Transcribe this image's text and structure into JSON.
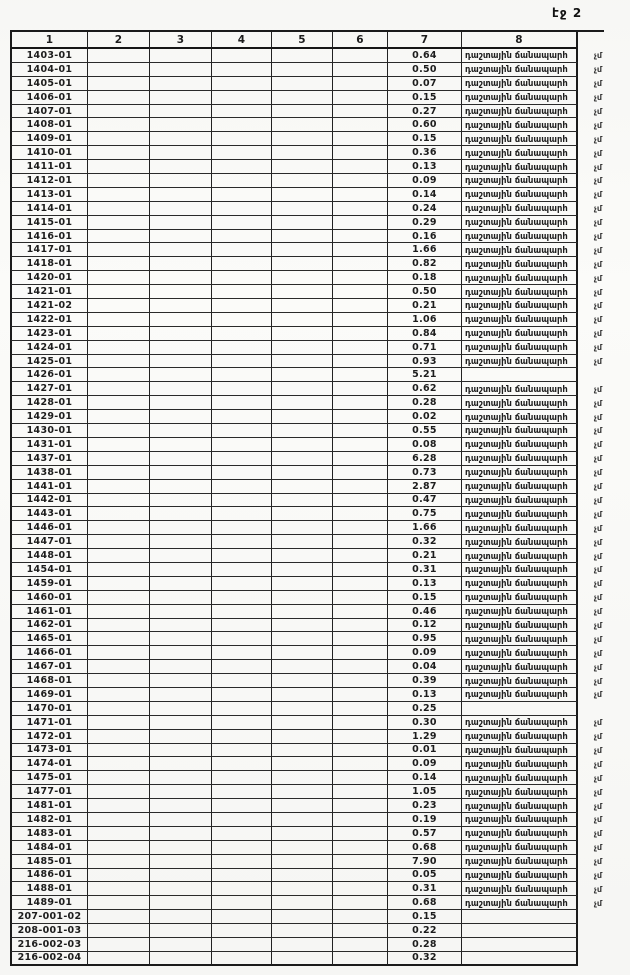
{
  "page": {
    "label": "էջ 2"
  },
  "table": {
    "headers": [
      "1",
      "2",
      "3",
      "4",
      "5",
      "6",
      "7",
      "8"
    ],
    "road_text": "դաշտային ճանապարհ",
    "margin_note": "չմ",
    "rows": [
      {
        "id": "1403-01",
        "value": "0.64",
        "road": true
      },
      {
        "id": "1404-01",
        "value": "0.50",
        "road": true
      },
      {
        "id": "1405-01",
        "value": "0.07",
        "road": true
      },
      {
        "id": "1406-01",
        "value": "0.15",
        "road": true
      },
      {
        "id": "1407-01",
        "value": "0.27",
        "road": true
      },
      {
        "id": "1408-01",
        "value": "0.60",
        "road": true
      },
      {
        "id": "1409-01",
        "value": "0.15",
        "road": true
      },
      {
        "id": "1410-01",
        "value": "0.36",
        "road": true
      },
      {
        "id": "1411-01",
        "value": "0.13",
        "road": true
      },
      {
        "id": "1412-01",
        "value": "0.09",
        "road": true
      },
      {
        "id": "1413-01",
        "value": "0.14",
        "road": true
      },
      {
        "id": "1414-01",
        "value": "0.24",
        "road": true
      },
      {
        "id": "1415-01",
        "value": "0.29",
        "road": true
      },
      {
        "id": "1416-01",
        "value": "0.16",
        "road": true
      },
      {
        "id": "1417-01",
        "value": "1.66",
        "road": true
      },
      {
        "id": "1418-01",
        "value": "0.82",
        "road": true
      },
      {
        "id": "1420-01",
        "value": "0.18",
        "road": true
      },
      {
        "id": "1421-01",
        "value": "0.50",
        "road": true
      },
      {
        "id": "1421-02",
        "value": "0.21",
        "road": true
      },
      {
        "id": "1422-01",
        "value": "1.06",
        "road": true
      },
      {
        "id": "1423-01",
        "value": "0.84",
        "road": true
      },
      {
        "id": "1424-01",
        "value": "0.71",
        "road": true
      },
      {
        "id": "1425-01",
        "value": "0.93",
        "road": true
      },
      {
        "id": "1426-01",
        "value": "5.21",
        "road": false
      },
      {
        "id": "1427-01",
        "value": "0.62",
        "road": true
      },
      {
        "id": "1428-01",
        "value": "0.28",
        "road": true
      },
      {
        "id": "1429-01",
        "value": "0.02",
        "road": true
      },
      {
        "id": "1430-01",
        "value": "0.55",
        "road": true
      },
      {
        "id": "1431-01",
        "value": "0.08",
        "road": true
      },
      {
        "id": "1437-01",
        "value": "6.28",
        "road": true
      },
      {
        "id": "1438-01",
        "value": "0.73",
        "road": true
      },
      {
        "id": "1441-01",
        "value": "2.87",
        "road": true
      },
      {
        "id": "1442-01",
        "value": "0.47",
        "road": true
      },
      {
        "id": "1443-01",
        "value": "0.75",
        "road": true
      },
      {
        "id": "1446-01",
        "value": "1.66",
        "road": true
      },
      {
        "id": "1447-01",
        "value": "0.32",
        "road": true
      },
      {
        "id": "1448-01",
        "value": "0.21",
        "road": true
      },
      {
        "id": "1454-01",
        "value": "0.31",
        "road": true
      },
      {
        "id": "1459-01",
        "value": "0.13",
        "road": true
      },
      {
        "id": "1460-01",
        "value": "0.15",
        "road": true
      },
      {
        "id": "1461-01",
        "value": "0.46",
        "road": true
      },
      {
        "id": "1462-01",
        "value": "0.12",
        "road": true
      },
      {
        "id": "1465-01",
        "value": "0.95",
        "road": true
      },
      {
        "id": "1466-01",
        "value": "0.09",
        "road": true
      },
      {
        "id": "1467-01",
        "value": "0.04",
        "road": true
      },
      {
        "id": "1468-01",
        "value": "0.39",
        "road": true
      },
      {
        "id": "1469-01",
        "value": "0.13",
        "road": true
      },
      {
        "id": "1470-01",
        "value": "0.25",
        "road": false
      },
      {
        "id": "1471-01",
        "value": "0.30",
        "road": true
      },
      {
        "id": "1472-01",
        "value": "1.29",
        "road": true
      },
      {
        "id": "1473-01",
        "value": "0.01",
        "road": true
      },
      {
        "id": "1474-01",
        "value": "0.09",
        "road": true
      },
      {
        "id": "1475-01",
        "value": "0.14",
        "road": true
      },
      {
        "id": "1477-01",
        "value": "1.05",
        "road": true
      },
      {
        "id": "1481-01",
        "value": "0.23",
        "road": true
      },
      {
        "id": "1482-01",
        "value": "0.19",
        "road": true
      },
      {
        "id": "1483-01",
        "value": "0.57",
        "road": true
      },
      {
        "id": "1484-01",
        "value": "0.68",
        "road": true
      },
      {
        "id": "1485-01",
        "value": "7.90",
        "road": true
      },
      {
        "id": "1486-01",
        "value": "0.05",
        "road": true
      },
      {
        "id": "1488-01",
        "value": "0.31",
        "road": true
      },
      {
        "id": "1489-01",
        "value": "0.68",
        "road": true
      },
      {
        "id": "207-001-02",
        "value": "0.15",
        "road": false
      },
      {
        "id": "208-001-03",
        "value": "0.22",
        "road": false
      },
      {
        "id": "216-002-03",
        "value": "0.28",
        "road": false
      },
      {
        "id": "216-002-04",
        "value": "0.32",
        "road": false
      }
    ]
  }
}
